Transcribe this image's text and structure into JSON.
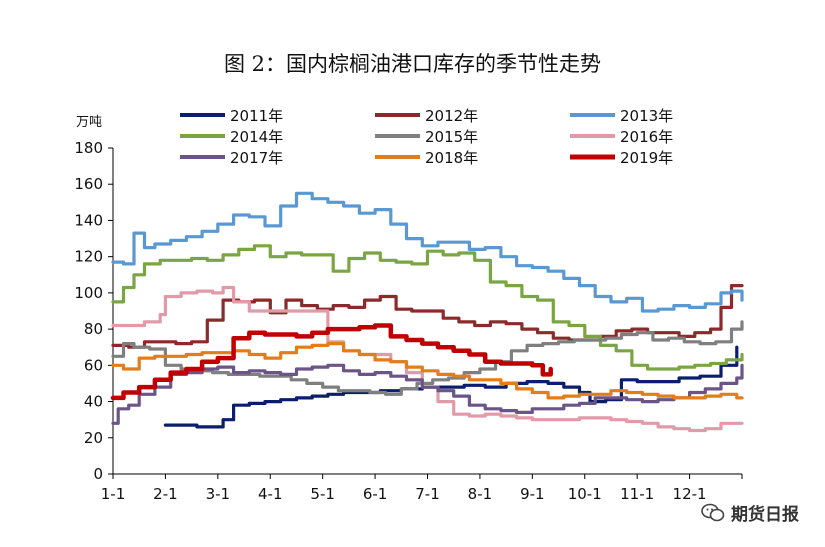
{
  "title": "图 2：国内棕榈油港口库存的季节性走势",
  "watermark": "期货日报",
  "chart_data": {
    "type": "line",
    "title": "图 2：国内棕榈油港口库存的季节性走势",
    "unit": "万吨",
    "xlabel": "",
    "ylabel": "万吨",
    "ylim": [
      0,
      180
    ],
    "y_ticks": [
      0,
      20,
      40,
      60,
      80,
      100,
      120,
      140,
      160,
      180
    ],
    "x_ticks": [
      "1-1",
      "2-1",
      "3-1",
      "4-1",
      "5-1",
      "6-1",
      "7-1",
      "8-1",
      "9-1",
      "10-1",
      "11-1",
      "12-1"
    ],
    "xlim": [
      1,
      13
    ],
    "grid": false,
    "legend_position": "top",
    "series": [
      {
        "name": "2011年",
        "color": "#0b1e6e",
        "x": [
          2.0,
          2.4,
          2.6,
          2.9,
          3.1,
          3.3,
          3.6,
          3.9,
          4.2,
          4.5,
          4.8,
          5.1,
          5.4,
          5.8,
          6.1,
          6.5,
          6.9,
          7.3,
          7.7,
          8.1,
          8.5,
          8.9,
          9.3,
          9.6,
          9.9,
          10.1,
          10.4,
          10.7,
          11.0,
          11.4,
          11.8,
          12.2,
          12.6,
          12.9
        ],
        "values": [
          27,
          27,
          26,
          26,
          30,
          38,
          39,
          40,
          41,
          42,
          43,
          44,
          45,
          45,
          46,
          47,
          48,
          48,
          49,
          48,
          50,
          51,
          50,
          48,
          45,
          40,
          41,
          52,
          51,
          51,
          53,
          54,
          60,
          70
        ]
      },
      {
        "name": "2012年",
        "color": "#8b2a2a",
        "x": [
          1.0,
          1.3,
          1.6,
          1.9,
          2.2,
          2.5,
          2.8,
          3.1,
          3.4,
          3.7,
          4.0,
          4.3,
          4.6,
          4.9,
          5.2,
          5.5,
          5.8,
          6.1,
          6.4,
          6.7,
          7.0,
          7.3,
          7.6,
          7.9,
          8.2,
          8.5,
          8.8,
          9.1,
          9.4,
          9.7,
          10.0,
          10.3,
          10.6,
          10.9,
          11.2,
          11.5,
          11.8,
          12.1,
          12.4,
          12.6,
          12.8,
          13.0
        ],
        "values": [
          71,
          70,
          73,
          73,
          72,
          73,
          85,
          96,
          95,
          96,
          89,
          96,
          93,
          91,
          93,
          92,
          96,
          98,
          91,
          90,
          90,
          86,
          84,
          82,
          84,
          83,
          80,
          78,
          75,
          74,
          74,
          76,
          79,
          80,
          78,
          78,
          76,
          78,
          80,
          92,
          104,
          104
        ]
      },
      {
        "name": "2013年",
        "color": "#5a98d4",
        "x": [
          1.0,
          1.2,
          1.4,
          1.6,
          1.8,
          2.1,
          2.4,
          2.7,
          3.0,
          3.3,
          3.6,
          3.9,
          4.2,
          4.5,
          4.8,
          5.1,
          5.4,
          5.7,
          6.0,
          6.3,
          6.6,
          6.9,
          7.2,
          7.5,
          7.8,
          8.1,
          8.4,
          8.7,
          9.0,
          9.3,
          9.6,
          9.9,
          10.2,
          10.5,
          10.8,
          11.1,
          11.4,
          11.7,
          12.0,
          12.3,
          12.6,
          12.8,
          13.0
        ],
        "values": [
          117,
          116,
          133,
          125,
          127,
          129,
          131,
          134,
          138,
          143,
          142,
          137,
          148,
          155,
          152,
          150,
          148,
          144,
          146,
          138,
          130,
          126,
          128,
          128,
          124,
          125,
          120,
          115,
          114,
          112,
          108,
          104,
          98,
          95,
          97,
          90,
          91,
          93,
          92,
          94,
          100,
          101,
          96
        ]
      },
      {
        "name": "2014年",
        "color": "#7aa543",
        "x": [
          1.0,
          1.2,
          1.4,
          1.6,
          1.9,
          2.2,
          2.5,
          2.8,
          3.1,
          3.4,
          3.7,
          4.0,
          4.3,
          4.6,
          4.9,
          5.2,
          5.5,
          5.8,
          6.1,
          6.4,
          6.7,
          7.0,
          7.3,
          7.6,
          7.9,
          8.2,
          8.5,
          8.8,
          9.1,
          9.4,
          9.7,
          10.0,
          10.3,
          10.6,
          10.9,
          11.2,
          11.5,
          11.8,
          12.1,
          12.4,
          12.7,
          13.0
        ],
        "values": [
          95,
          103,
          110,
          116,
          118,
          118,
          119,
          118,
          121,
          124,
          126,
          120,
          122,
          121,
          121,
          112,
          119,
          122,
          118,
          117,
          116,
          123,
          121,
          122,
          118,
          106,
          104,
          98,
          96,
          84,
          82,
          76,
          71,
          68,
          60,
          58,
          58,
          59,
          60,
          61,
          63,
          66
        ]
      },
      {
        "name": "2015年",
        "color": "#7f7f7f",
        "x": [
          1.0,
          1.2,
          1.4,
          1.7,
          2.0,
          2.3,
          2.6,
          2.9,
          3.2,
          3.5,
          3.8,
          4.1,
          4.4,
          4.7,
          5.0,
          5.3,
          5.6,
          5.9,
          6.2,
          6.5,
          6.8,
          7.1,
          7.4,
          7.7,
          8.0,
          8.3,
          8.6,
          8.9,
          9.2,
          9.5,
          9.8,
          10.1,
          10.4,
          10.7,
          11.0,
          11.3,
          11.6,
          11.9,
          12.2,
          12.5,
          12.8,
          13.0
        ],
        "values": [
          65,
          72,
          70,
          69,
          60,
          58,
          57,
          56,
          55,
          55,
          54,
          54,
          52,
          50,
          48,
          46,
          46,
          45,
          44,
          47,
          50,
          52,
          53,
          56,
          58,
          62,
          68,
          71,
          72,
          73,
          74,
          74,
          75,
          77,
          78,
          74,
          75,
          73,
          72,
          73,
          80,
          84
        ]
      },
      {
        "name": "2016年",
        "color": "#e09aa8",
        "x": [
          1.0,
          1.3,
          1.6,
          1.9,
          2.0,
          2.3,
          2.6,
          2.9,
          3.1,
          3.3,
          3.6,
          3.9,
          4.2,
          4.5,
          4.8,
          5.1,
          5.4,
          5.7,
          6.0,
          6.3,
          6.6,
          6.9,
          7.2,
          7.5,
          7.8,
          8.1,
          8.4,
          8.7,
          9.0,
          9.3,
          9.6,
          9.9,
          10.2,
          10.5,
          10.8,
          11.1,
          11.4,
          11.7,
          12.0,
          12.3,
          12.6,
          12.9,
          13.0
        ],
        "values": [
          82,
          82,
          84,
          88,
          98,
          100,
          101,
          100,
          103,
          95,
          90,
          90,
          90,
          90,
          90,
          73,
          68,
          66,
          66,
          62,
          56,
          48,
          40,
          33,
          32,
          33,
          32,
          31,
          30,
          30,
          30,
          31,
          31,
          30,
          29,
          28,
          26,
          25,
          24,
          25,
          28,
          28,
          28
        ]
      },
      {
        "name": "2017年",
        "color": "#6b5488",
        "x": [
          1.0,
          1.1,
          1.3,
          1.5,
          1.8,
          2.1,
          2.4,
          2.7,
          3.0,
          3.3,
          3.6,
          3.9,
          4.2,
          4.5,
          4.8,
          5.1,
          5.4,
          5.7,
          6.0,
          6.3,
          6.6,
          6.9,
          7.2,
          7.5,
          7.8,
          8.1,
          8.4,
          8.7,
          9.0,
          9.3,
          9.6,
          9.9,
          10.2,
          10.5,
          10.8,
          11.1,
          11.4,
          11.7,
          12.0,
          12.3,
          12.6,
          12.9,
          13.0
        ],
        "values": [
          28,
          36,
          38,
          44,
          48,
          55,
          56,
          58,
          59,
          56,
          57,
          56,
          55,
          58,
          59,
          60,
          57,
          55,
          56,
          54,
          52,
          48,
          46,
          43,
          38,
          36,
          35,
          34,
          36,
          36,
          38,
          39,
          42,
          42,
          41,
          40,
          41,
          42,
          45,
          47,
          50,
          53,
          60
        ]
      },
      {
        "name": "2018年",
        "color": "#e47c19",
        "x": [
          1.0,
          1.2,
          1.5,
          1.8,
          2.1,
          2.4,
          2.7,
          3.0,
          3.3,
          3.6,
          3.9,
          4.2,
          4.5,
          4.8,
          5.1,
          5.4,
          5.7,
          6.0,
          6.3,
          6.6,
          6.9,
          7.2,
          7.5,
          7.8,
          8.1,
          8.4,
          8.7,
          9.0,
          9.3,
          9.6,
          9.9,
          10.2,
          10.5,
          10.8,
          11.1,
          11.4,
          11.7,
          12.0,
          12.3,
          12.6,
          12.9,
          13.0
        ],
        "values": [
          60,
          58,
          64,
          65,
          65,
          66,
          67,
          67,
          68,
          66,
          64,
          67,
          70,
          71,
          72,
          68,
          66,
          63,
          62,
          59,
          57,
          55,
          54,
          52,
          52,
          50,
          47,
          45,
          42,
          43,
          44,
          44,
          46,
          45,
          44,
          43,
          42,
          42,
          43,
          44,
          42,
          42
        ]
      },
      {
        "name": "2019年",
        "color": "#c00000",
        "x": [
          1.0,
          1.2,
          1.5,
          1.8,
          2.1,
          2.4,
          2.7,
          3.0,
          3.3,
          3.6,
          3.9,
          4.2,
          4.5,
          4.8,
          5.1,
          5.4,
          5.7,
          6.0,
          6.3,
          6.6,
          6.9,
          7.2,
          7.5,
          7.8,
          8.1,
          8.4,
          8.7,
          9.0,
          9.2,
          9.35
        ],
        "values": [
          42,
          45,
          48,
          52,
          56,
          58,
          62,
          64,
          75,
          78,
          77,
          77,
          76,
          78,
          80,
          80,
          81,
          82,
          76,
          74,
          72,
          70,
          68,
          66,
          62,
          61,
          61,
          60,
          55,
          58
        ]
      }
    ]
  }
}
